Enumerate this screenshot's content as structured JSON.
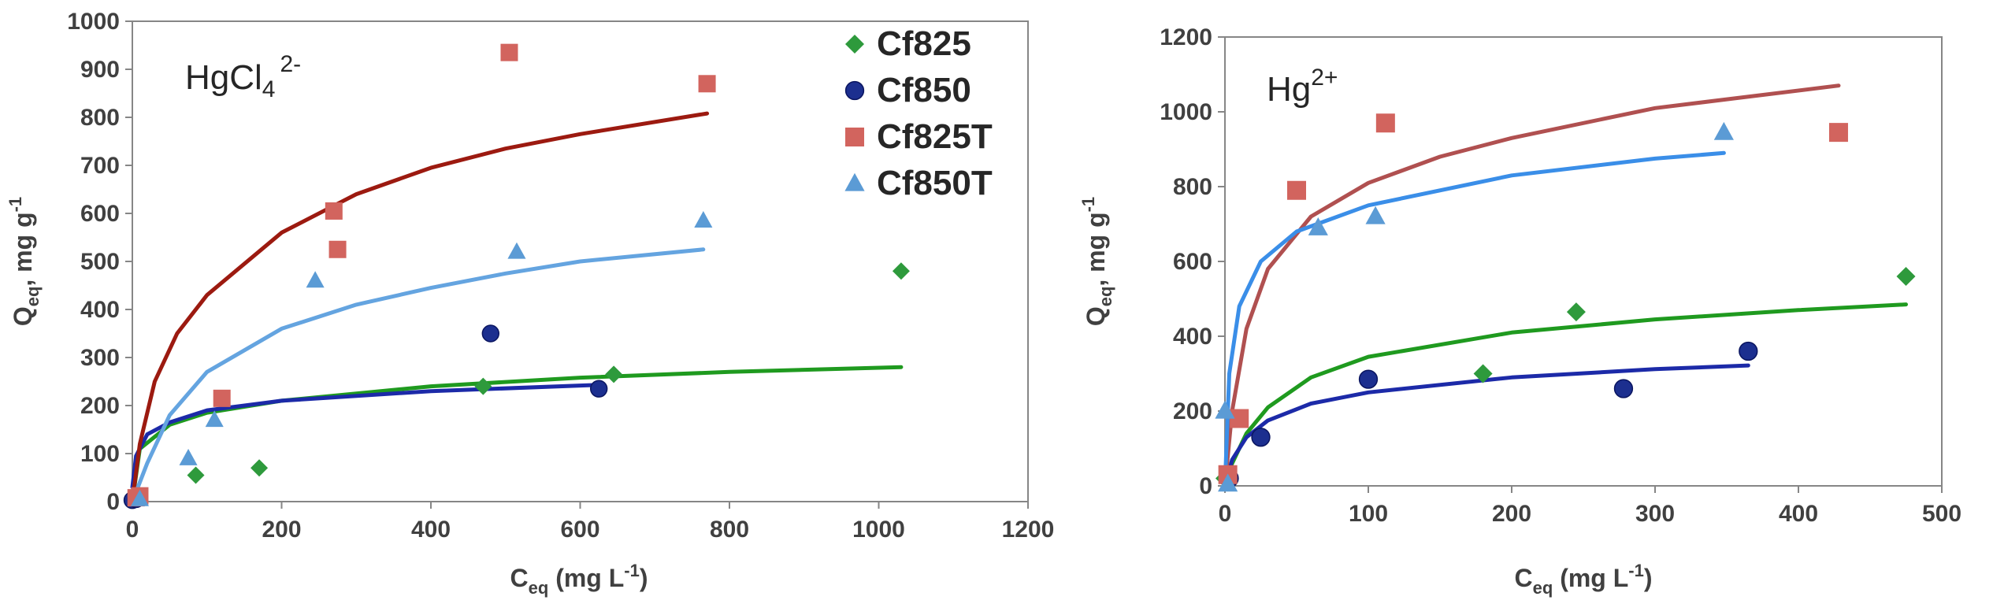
{
  "chart_data": [
    {
      "type": "scatter",
      "species": {
        "base": "HgCl",
        "sub": "4",
        "sup": "2-"
      },
      "xlabel": {
        "main": "C",
        "sub": "eq",
        "units": " (mg L",
        "sup": "-1",
        "close": ")"
      },
      "ylabel": {
        "main": "Q",
        "sub": "eq",
        "units": ", mg g",
        "sup": "-1"
      },
      "xlim": [
        0,
        1200
      ],
      "ylim": [
        0,
        1000
      ],
      "xticks": [
        0,
        200,
        400,
        600,
        800,
        1000,
        1200
      ],
      "yticks": [
        0,
        100,
        200,
        300,
        400,
        500,
        600,
        700,
        800,
        900,
        1000
      ],
      "legend": {
        "placement": "top-right",
        "entries": [
          "Cf825",
          "Cf850",
          "Cf825T",
          "Cf850T"
        ]
      },
      "series": [
        {
          "name": "Cf825",
          "marker": "diamond",
          "color": "#2e9a3c",
          "line_color": "#1f9a1f",
          "points": [
            [
              0,
              3
            ],
            [
              85,
              55
            ],
            [
              170,
              70
            ],
            [
              470,
              240
            ],
            [
              645,
              265
            ],
            [
              1030,
              480
            ]
          ],
          "fit": [
            [
              0,
              0
            ],
            [
              10,
              110
            ],
            [
              50,
              160
            ],
            [
              100,
              185
            ],
            [
              200,
              210
            ],
            [
              400,
              240
            ],
            [
              600,
              258
            ],
            [
              800,
              270
            ],
            [
              1030,
              280
            ]
          ]
        },
        {
          "name": "Cf850",
          "marker": "circle",
          "color": "#1c2f8f",
          "line_color": "#1c2aa8",
          "points": [
            [
              0,
              3
            ],
            [
              5,
              5
            ],
            [
              480,
              350
            ],
            [
              625,
              235
            ]
          ],
          "fit": [
            [
              0,
              30
            ],
            [
              5,
              95
            ],
            [
              20,
              140
            ],
            [
              50,
              165
            ],
            [
              100,
              190
            ],
            [
              200,
              210
            ],
            [
              400,
              230
            ],
            [
              625,
              243
            ]
          ]
        },
        {
          "name": "Cf825T",
          "marker": "square",
          "color": "#d2645e",
          "line_color": "#9c1a10",
          "points": [
            [
              5,
              8
            ],
            [
              10,
              12
            ],
            [
              120,
              215
            ],
            [
              270,
              605
            ],
            [
              275,
              525
            ],
            [
              505,
              935
            ],
            [
              770,
              870
            ]
          ],
          "fit": [
            [
              0,
              0
            ],
            [
              10,
              120
            ],
            [
              30,
              250
            ],
            [
              60,
              350
            ],
            [
              100,
              430
            ],
            [
              200,
              560
            ],
            [
              300,
              640
            ],
            [
              400,
              695
            ],
            [
              500,
              735
            ],
            [
              600,
              765
            ],
            [
              770,
              808
            ]
          ]
        },
        {
          "name": "Cf850T",
          "marker": "triangle",
          "color": "#5b9bd5",
          "line_color": "#64a4e0",
          "points": [
            [
              10,
              5
            ],
            [
              75,
              90
            ],
            [
              110,
              170
            ],
            [
              245,
              460
            ],
            [
              515,
              520
            ],
            [
              765,
              585
            ]
          ],
          "fit": [
            [
              0,
              0
            ],
            [
              20,
              80
            ],
            [
              50,
              180
            ],
            [
              100,
              270
            ],
            [
              200,
              360
            ],
            [
              300,
              410
            ],
            [
              400,
              445
            ],
            [
              500,
              475
            ],
            [
              600,
              500
            ],
            [
              765,
              525
            ]
          ]
        }
      ]
    },
    {
      "type": "scatter",
      "species": {
        "base": "Hg",
        "sub": "",
        "sup": "2+"
      },
      "xlabel": {
        "main": "C",
        "sub": "eq",
        "units": " (mg L",
        "sup": "-1",
        "close": ")"
      },
      "ylabel": {
        "main": "Q",
        "sub": "eq",
        "units": ", mg g",
        "sup": "-1"
      },
      "xlim": [
        0,
        500
      ],
      "ylim": [
        0,
        1200
      ],
      "xticks": [
        0,
        100,
        200,
        300,
        400,
        500
      ],
      "yticks": [
        0,
        200,
        400,
        600,
        800,
        1000,
        1200
      ],
      "series": [
        {
          "name": "Cf825",
          "marker": "diamond",
          "color": "#2e9a3c",
          "line_color": "#1f9a1f",
          "points": [
            [
              0,
              20
            ],
            [
              25,
              130
            ],
            [
              180,
              300
            ],
            [
              245,
              465
            ],
            [
              475,
              560
            ]
          ],
          "fit": [
            [
              0,
              0
            ],
            [
              5,
              60
            ],
            [
              15,
              140
            ],
            [
              30,
              210
            ],
            [
              60,
              290
            ],
            [
              100,
              345
            ],
            [
              200,
              410
            ],
            [
              300,
              445
            ],
            [
              400,
              470
            ],
            [
              475,
              485
            ]
          ]
        },
        {
          "name": "Cf850",
          "marker": "circle",
          "color": "#1c2f8f",
          "line_color": "#1c2aa8",
          "points": [
            [
              3,
              20
            ],
            [
              25,
              130
            ],
            [
              100,
              285
            ],
            [
              278,
              260
            ],
            [
              365,
              360
            ]
          ],
          "fit": [
            [
              0,
              0
            ],
            [
              5,
              70
            ],
            [
              15,
              130
            ],
            [
              30,
              175
            ],
            [
              60,
              220
            ],
            [
              100,
              250
            ],
            [
              200,
              290
            ],
            [
              300,
              312
            ],
            [
              365,
              322
            ]
          ]
        },
        {
          "name": "Cf825T",
          "marker": "square",
          "color": "#d2645e",
          "line_color": "#b05050",
          "points": [
            [
              2,
              30
            ],
            [
              10,
              180
            ],
            [
              50,
              790
            ],
            [
              112,
              970
            ],
            [
              428,
              945
            ]
          ],
          "fit": [
            [
              0,
              0
            ],
            [
              5,
              200
            ],
            [
              15,
              420
            ],
            [
              30,
              580
            ],
            [
              60,
              720
            ],
            [
              100,
              810
            ],
            [
              150,
              880
            ],
            [
              200,
              930
            ],
            [
              300,
              1010
            ],
            [
              428,
              1070
            ]
          ]
        },
        {
          "name": "Cf850T",
          "marker": "triangle",
          "color": "#5b9bd5",
          "line_color": "#3a8ee8",
          "points": [
            [
              0,
              200
            ],
            [
              2,
              5
            ],
            [
              65,
              690
            ],
            [
              105,
              720
            ],
            [
              348,
              945
            ]
          ],
          "fit": [
            [
              0,
              0
            ],
            [
              3,
              300
            ],
            [
              10,
              480
            ],
            [
              25,
              600
            ],
            [
              50,
              680
            ],
            [
              100,
              750
            ],
            [
              200,
              830
            ],
            [
              300,
              875
            ],
            [
              348,
              890
            ]
          ]
        }
      ]
    }
  ]
}
